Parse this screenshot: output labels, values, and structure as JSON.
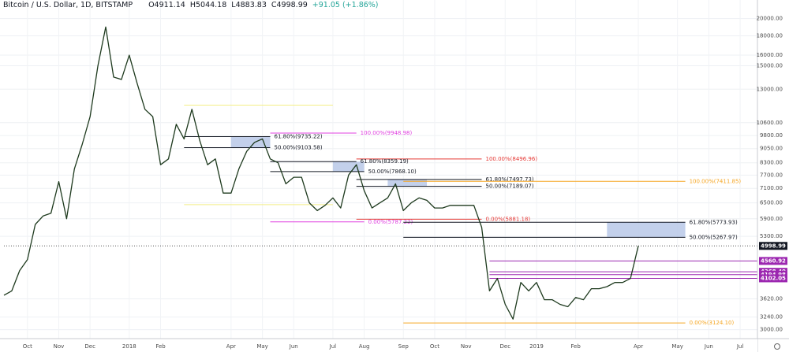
{
  "header": {
    "symbol": "Bitcoin / U.S. Dollar, 1D, BITSTAMP",
    "ohlc": [
      "O4911.14",
      "H5044.18",
      "L4883.83",
      "C4998.99",
      "+91.05 (+1.86%)"
    ]
  },
  "chart_data": {
    "type": "line",
    "log_scale": true,
    "grid": true,
    "color": "#1e3a1e",
    "categories": [
      null,
      null,
      null,
      "Oct",
      null,
      null,
      null,
      "Nov",
      null,
      null,
      null,
      "Dec",
      null,
      null,
      null,
      null,
      "2018",
      null,
      null,
      null,
      "Feb",
      null,
      null,
      null,
      null,
      null,
      null,
      null,
      null,
      "Apr",
      null,
      null,
      null,
      "May",
      null,
      null,
      null,
      "Jun",
      null,
      null,
      null,
      null,
      "Jul",
      null,
      null,
      null,
      "Aug",
      null,
      null,
      null,
      null,
      "Sep",
      null,
      null,
      null,
      "Oct",
      null,
      null,
      null,
      "Nov",
      null,
      null,
      null,
      null,
      "Dec",
      null,
      null,
      null,
      "2019",
      null,
      null,
      null,
      null,
      "Feb",
      null,
      null,
      null,
      null,
      null,
      null,
      null,
      "Apr",
      null,
      null,
      null,
      null,
      "May",
      null,
      null,
      null,
      "Jun",
      null,
      null,
      null,
      "Jul",
      null
    ],
    "series": [
      {
        "name": "BTCUSD",
        "color": "#1e3a1e",
        "values": [
          3700,
          3800,
          4300,
          4600,
          5700,
          6000,
          6100,
          7400,
          5900,
          8000,
          9300,
          11000,
          15000,
          19000,
          14000,
          13800,
          16000,
          13500,
          11500,
          11000,
          8200,
          8500,
          10500,
          9600,
          11500,
          9500,
          8200,
          8500,
          6900,
          6900,
          8000,
          8900,
          9400,
          9600,
          8500,
          8300,
          7300,
          7600,
          7600,
          6500,
          6200,
          6400,
          6700,
          6300,
          7700,
          8200,
          7000,
          6300,
          6500,
          6700,
          7300,
          6200,
          6500,
          6700,
          6600,
          6300,
          6300,
          6400,
          6400,
          6400,
          6400,
          5600,
          3800,
          4100,
          3500,
          3200,
          4000,
          3800,
          4000,
          3600,
          3600,
          3500,
          3450,
          3650,
          3600,
          3850,
          3850,
          3900,
          4000,
          4000,
          4100,
          4998.99,
          null,
          null,
          null,
          null,
          null,
          null,
          null,
          null,
          null,
          null,
          null,
          null,
          null,
          null
        ]
      }
    ],
    "ylim": [
      2840,
      22400
    ],
    "yticks": [
      {
        "value": 3000,
        "label": "3000.00"
      },
      {
        "value": 3240,
        "label": "3240.00"
      },
      {
        "value": 3620,
        "label": "3620.00"
      },
      {
        "value": 5300,
        "label": "5300.00"
      },
      {
        "value": 5900,
        "label": "5900.00"
      },
      {
        "value": 6500,
        "label": "6500.00"
      },
      {
        "value": 7100,
        "label": "7100.00"
      },
      {
        "value": 7700,
        "label": "7700.00"
      },
      {
        "value": 8300,
        "label": "8300.00"
      },
      {
        "value": 9050,
        "label": "9050.00"
      },
      {
        "value": 9800,
        "label": "9800.00"
      },
      {
        "value": 10600,
        "label": "10600.00"
      },
      {
        "value": 13000,
        "label": "13000.00"
      },
      {
        "value": 15000,
        "label": "15000.00"
      },
      {
        "value": 16000,
        "label": "16000.00"
      },
      {
        "value": 18000,
        "label": "18000.00"
      },
      {
        "value": 20000,
        "label": "20000.00"
      }
    ],
    "zones": [
      {
        "values": [
          9103.58,
          9735.22
        ],
        "x": [
          29,
          34
        ],
        "color": "#b8c8e8"
      },
      {
        "values": [
          7868.1,
          8359.19
        ],
        "x": [
          42,
          46
        ],
        "color": "#b8c8e8"
      },
      {
        "values": [
          7189.07,
          7497.73
        ],
        "x": [
          49,
          54
        ],
        "color": "#b8c8e8"
      },
      {
        "values": [
          5267.97,
          5773.93
        ],
        "x": [
          77,
          87
        ],
        "color": "#b8c8e8"
      }
    ],
    "levels": [
      {
        "value": 11800,
        "color": "#f3ee86",
        "x": [
          23,
          42
        ]
      },
      {
        "value": 6430,
        "color": "#f3ee86",
        "x": [
          23,
          42
        ]
      },
      {
        "text": "61.80%(9735.22)",
        "value": 9735.22,
        "color": "#131722",
        "x": [
          23,
          34
        ]
      },
      {
        "text": "50.00%(9103.58)",
        "value": 9103.58,
        "color": "#131722",
        "x": [
          23,
          34
        ]
      },
      {
        "text": "100.00%(9948.98)",
        "value": 9948.98,
        "color": "#e040e0",
        "x": [
          34,
          45
        ]
      },
      {
        "text": "0.00%(5787.22)",
        "value": 5787.22,
        "color": "#e040e0",
        "x": [
          34,
          46
        ]
      },
      {
        "text": "100.00%(8496.96)",
        "value": 8496.96,
        "color": "#e53935",
        "x": [
          45,
          61
        ]
      },
      {
        "text": "61.80%(8359.19)",
        "value": 8359.19,
        "color": "#131722",
        "x": [
          34,
          45
        ]
      },
      {
        "text": "50.00%(7868.10)",
        "value": 7868.1,
        "color": "#131722",
        "x": [
          34,
          46
        ]
      },
      {
        "text": "0.00%(5881.18)",
        "value": 5881.18,
        "color": "#e53935",
        "x": [
          45,
          61
        ]
      },
      {
        "text": "61.80%(7497.73)",
        "value": 7497.73,
        "color": "#131722",
        "x": [
          45,
          61
        ]
      },
      {
        "text": "50.00%(7189.07)",
        "value": 7189.07,
        "color": "#131722",
        "x": [
          45,
          61
        ]
      },
      {
        "text": "100.00%(7411.85)",
        "value": 7411.85,
        "color": "#f5a623",
        "x": [
          51,
          87
        ]
      },
      {
        "text": "0.00%(3124.10)",
        "value": 3124.1,
        "color": "#f5a623",
        "x": [
          51,
          87
        ]
      },
      {
        "text": "61.80%(5773.93)",
        "value": 5773.93,
        "color": "#131722",
        "x": [
          51,
          87
        ]
      },
      {
        "text": "50.00%(5267.97)",
        "value": 5267.97,
        "color": "#131722",
        "x": [
          51,
          87
        ]
      }
    ],
    "price_lines": [
      {
        "value": 4998.99,
        "label": "4998.99",
        "color": "#131722",
        "x_start": 0,
        "dashed": true
      },
      {
        "value": 4560.92,
        "label": "4560.92",
        "color": "#9c27b0",
        "x_start": 62
      },
      {
        "value": 4268.4,
        "label": "4268.40",
        "color": "#9c27b0",
        "x_start": 62
      },
      {
        "value": 4194.98,
        "label": "4194.98",
        "color": "#9c27b0",
        "x_start": 62
      },
      {
        "value": 4102.05,
        "label": "4102.05",
        "color": "#9c27b0",
        "x_start": 62
      }
    ]
  }
}
